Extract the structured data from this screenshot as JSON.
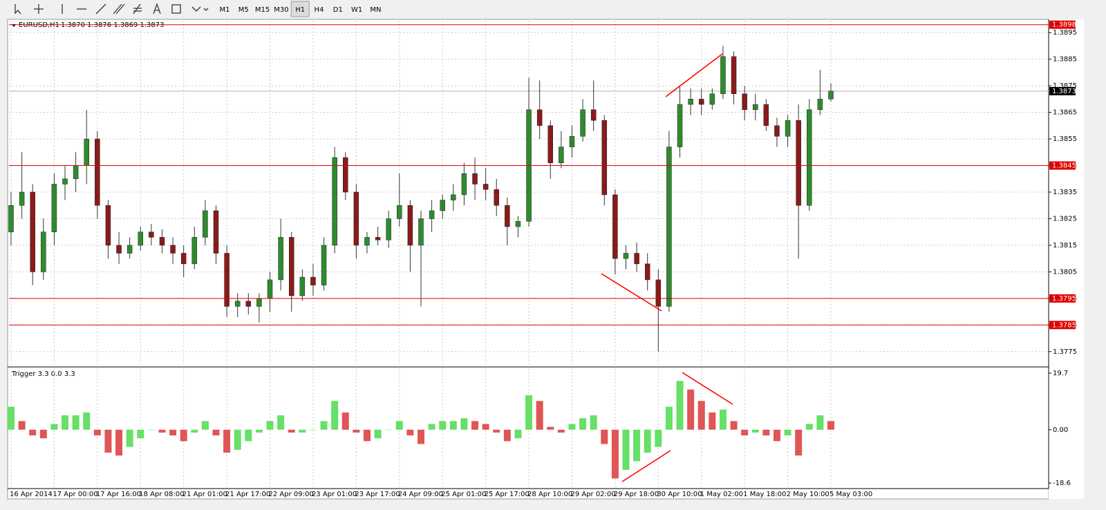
{
  "toolbar": {
    "timeframes": [
      "M1",
      "M5",
      "M15",
      "M30",
      "H1",
      "H4",
      "D1",
      "W1",
      "MN"
    ],
    "active_index": 4
  },
  "chart_data": [
    {
      "type": "candlestick",
      "title": "EURUSD,H1",
      "last_bar": "1.3870 1.3876 1.3869 1.3873",
      "up_color": "#2e8b2e",
      "down_color": "#8b1a1a",
      "grid": true,
      "ylim": [
        1.377,
        1.39
      ],
      "yticks": [
        1.3895,
        1.3885,
        1.3875,
        1.3865,
        1.3855,
        1.3845,
        1.3835,
        1.3825,
        1.3815,
        1.3805,
        1.3795,
        1.3785,
        1.3775
      ],
      "levels": [
        1.3898,
        1.3845,
        1.3795,
        1.3785
      ],
      "level_color": "#e00000",
      "last_price": 1.3873,
      "categories": [
        "16 Apr 2014",
        null,
        null,
        null,
        "17 Apr 00:00",
        null,
        null,
        null,
        "17 Apr 16:00",
        null,
        null,
        null,
        "18 Apr 08:00",
        null,
        null,
        null,
        "21 Apr 01:00",
        null,
        null,
        null,
        "21 Apr 17:00",
        null,
        null,
        null,
        "22 Apr 09:00",
        null,
        null,
        null,
        "23 Apr 01:00",
        null,
        null,
        null,
        "23 Apr 17:00",
        null,
        null,
        null,
        "24 Apr 09:00",
        null,
        null,
        null,
        "25 Apr 01:00",
        null,
        null,
        null,
        "25 Apr 17:00",
        null,
        null,
        null,
        "28 Apr 10:00",
        null,
        null,
        null,
        "29 Apr 02:00",
        null,
        null,
        null,
        "29 Apr 18:00",
        null,
        null,
        null,
        "30 Apr 10:00",
        null,
        null,
        null,
        "1 May 02:00",
        null,
        null,
        null,
        "1 May 18:00",
        null,
        null,
        null,
        "2 May 10:00",
        null,
        null,
        null,
        "5 May 03:00"
      ],
      "ohlc": [
        [
          1.382,
          1.3835,
          1.3815,
          1.383
        ],
        [
          1.383,
          1.385,
          1.3825,
          1.3835
        ],
        [
          1.3835,
          1.3838,
          1.38,
          1.3805
        ],
        [
          1.3805,
          1.3825,
          1.3802,
          1.382
        ],
        [
          1.382,
          1.3842,
          1.3815,
          1.3838
        ],
        [
          1.3838,
          1.3845,
          1.3832,
          1.384
        ],
        [
          1.384,
          1.385,
          1.3835,
          1.3845
        ],
        [
          1.3845,
          1.3866,
          1.3838,
          1.3855
        ],
        [
          1.3855,
          1.3858,
          1.3825,
          1.383
        ],
        [
          1.383,
          1.3832,
          1.381,
          1.3815
        ],
        [
          1.3815,
          1.382,
          1.3808,
          1.3812
        ],
        [
          1.3812,
          1.3818,
          1.381,
          1.3815
        ],
        [
          1.3815,
          1.3822,
          1.3813,
          1.382
        ],
        [
          1.382,
          1.3823,
          1.3815,
          1.3818
        ],
        [
          1.3818,
          1.3821,
          1.3812,
          1.3815
        ],
        [
          1.3815,
          1.3818,
          1.3808,
          1.3812
        ],
        [
          1.3812,
          1.3815,
          1.3803,
          1.3808
        ],
        [
          1.3808,
          1.3822,
          1.3806,
          1.3818
        ],
        [
          1.3818,
          1.3832,
          1.3815,
          1.3828
        ],
        [
          1.3828,
          1.383,
          1.3808,
          1.3812
        ],
        [
          1.3812,
          1.3815,
          1.3788,
          1.3792
        ],
        [
          1.3792,
          1.3797,
          1.3788,
          1.3794
        ],
        [
          1.3794,
          1.3797,
          1.3789,
          1.3792
        ],
        [
          1.3792,
          1.3797,
          1.3786,
          1.3795
        ],
        [
          1.3795,
          1.3805,
          1.379,
          1.3802
        ],
        [
          1.3802,
          1.3825,
          1.3798,
          1.3818
        ],
        [
          1.3818,
          1.382,
          1.379,
          1.3796
        ],
        [
          1.3796,
          1.3806,
          1.3794,
          1.3803
        ],
        [
          1.3803,
          1.3808,
          1.3796,
          1.38
        ],
        [
          1.38,
          1.3818,
          1.3798,
          1.3815
        ],
        [
          1.3815,
          1.3852,
          1.3812,
          1.3848
        ],
        [
          1.3848,
          1.385,
          1.3832,
          1.3835
        ],
        [
          1.3835,
          1.3838,
          1.381,
          1.3815
        ],
        [
          1.3815,
          1.382,
          1.3812,
          1.3818
        ],
        [
          1.3818,
          1.3822,
          1.3815,
          1.3817
        ],
        [
          1.3817,
          1.3828,
          1.3814,
          1.3825
        ],
        [
          1.3825,
          1.3842,
          1.3822,
          1.383
        ],
        [
          1.383,
          1.3832,
          1.3805,
          1.3815
        ],
        [
          1.3815,
          1.3828,
          1.3792,
          1.3825
        ],
        [
          1.3825,
          1.3832,
          1.382,
          1.3828
        ],
        [
          1.3828,
          1.3834,
          1.3825,
          1.3832
        ],
        [
          1.3832,
          1.3838,
          1.3828,
          1.3834
        ],
        [
          1.3834,
          1.3846,
          1.383,
          1.3842
        ],
        [
          1.3842,
          1.3848,
          1.3832,
          1.3838
        ],
        [
          1.3838,
          1.3844,
          1.3832,
          1.3836
        ],
        [
          1.3836,
          1.384,
          1.3826,
          1.383
        ],
        [
          1.383,
          1.3833,
          1.3815,
          1.3822
        ],
        [
          1.3822,
          1.3826,
          1.3818,
          1.3824
        ],
        [
          1.3824,
          1.3878,
          1.3822,
          1.3866
        ],
        [
          1.3866,
          1.3877,
          1.3855,
          1.386
        ],
        [
          1.386,
          1.3862,
          1.384,
          1.3846
        ],
        [
          1.3846,
          1.3858,
          1.3844,
          1.3852
        ],
        [
          1.3852,
          1.386,
          1.3848,
          1.3856
        ],
        [
          1.3856,
          1.387,
          1.3854,
          1.3866
        ],
        [
          1.3866,
          1.3877,
          1.3858,
          1.3862
        ],
        [
          1.3862,
          1.3864,
          1.383,
          1.3834
        ],
        [
          1.3834,
          1.3836,
          1.3804,
          1.381
        ],
        [
          1.381,
          1.3815,
          1.3806,
          1.3812
        ],
        [
          1.3812,
          1.3816,
          1.3805,
          1.3808
        ],
        [
          1.3808,
          1.3812,
          1.3798,
          1.3802
        ],
        [
          1.3802,
          1.3806,
          1.3775,
          1.3792
        ],
        [
          1.3792,
          1.3858,
          1.379,
          1.3852
        ],
        [
          1.3852,
          1.3875,
          1.3848,
          1.3868
        ],
        [
          1.3868,
          1.3874,
          1.3864,
          1.387
        ],
        [
          1.387,
          1.3874,
          1.3864,
          1.3868
        ],
        [
          1.3868,
          1.3874,
          1.3866,
          1.3872
        ],
        [
          1.3872,
          1.389,
          1.387,
          1.3886
        ],
        [
          1.3886,
          1.3888,
          1.3868,
          1.3872
        ],
        [
          1.3872,
          1.3875,
          1.3862,
          1.3866
        ],
        [
          1.3866,
          1.3872,
          1.3862,
          1.3868
        ],
        [
          1.3868,
          1.387,
          1.3858,
          1.386
        ],
        [
          1.386,
          1.3863,
          1.3852,
          1.3856
        ],
        [
          1.3856,
          1.3864,
          1.3852,
          1.3862
        ],
        [
          1.3862,
          1.3868,
          1.381,
          1.383
        ],
        [
          1.383,
          1.387,
          1.3828,
          1.3866
        ],
        [
          1.3866,
          1.3881,
          1.3864,
          1.387
        ],
        [
          1.387,
          1.3876,
          1.3869,
          1.3873
        ]
      ]
    },
    {
      "type": "histogram",
      "title": "Trigger 3.3 0.0 3.3",
      "up_color": "#66e066",
      "down_color": "#e05555",
      "ylim": [
        -18.6,
        19.7
      ],
      "yticks": [
        19.7,
        {
          "value": 0,
          "label": "0.00"
        },
        -18.6
      ],
      "values": [
        8,
        3,
        -2,
        -3,
        2,
        5,
        5,
        6,
        -2,
        -8,
        -9,
        -6,
        -3,
        0,
        -1,
        -2,
        -4,
        -1,
        3,
        -2,
        -8,
        -7,
        -4,
        -1,
        3,
        5,
        -1,
        -1,
        0,
        3,
        10,
        6,
        -1,
        -4,
        -3,
        0,
        3,
        -2,
        -5,
        2,
        3,
        3,
        4,
        3,
        2,
        -1,
        -4,
        -3,
        12,
        10,
        1,
        -1,
        2,
        4,
        5,
        -5,
        -17,
        -14,
        -11,
        -8,
        -6,
        8,
        17,
        14,
        10,
        6,
        7,
        3,
        -2,
        -1,
        -2,
        -4,
        -2,
        -9,
        2,
        5,
        3
      ]
    }
  ]
}
